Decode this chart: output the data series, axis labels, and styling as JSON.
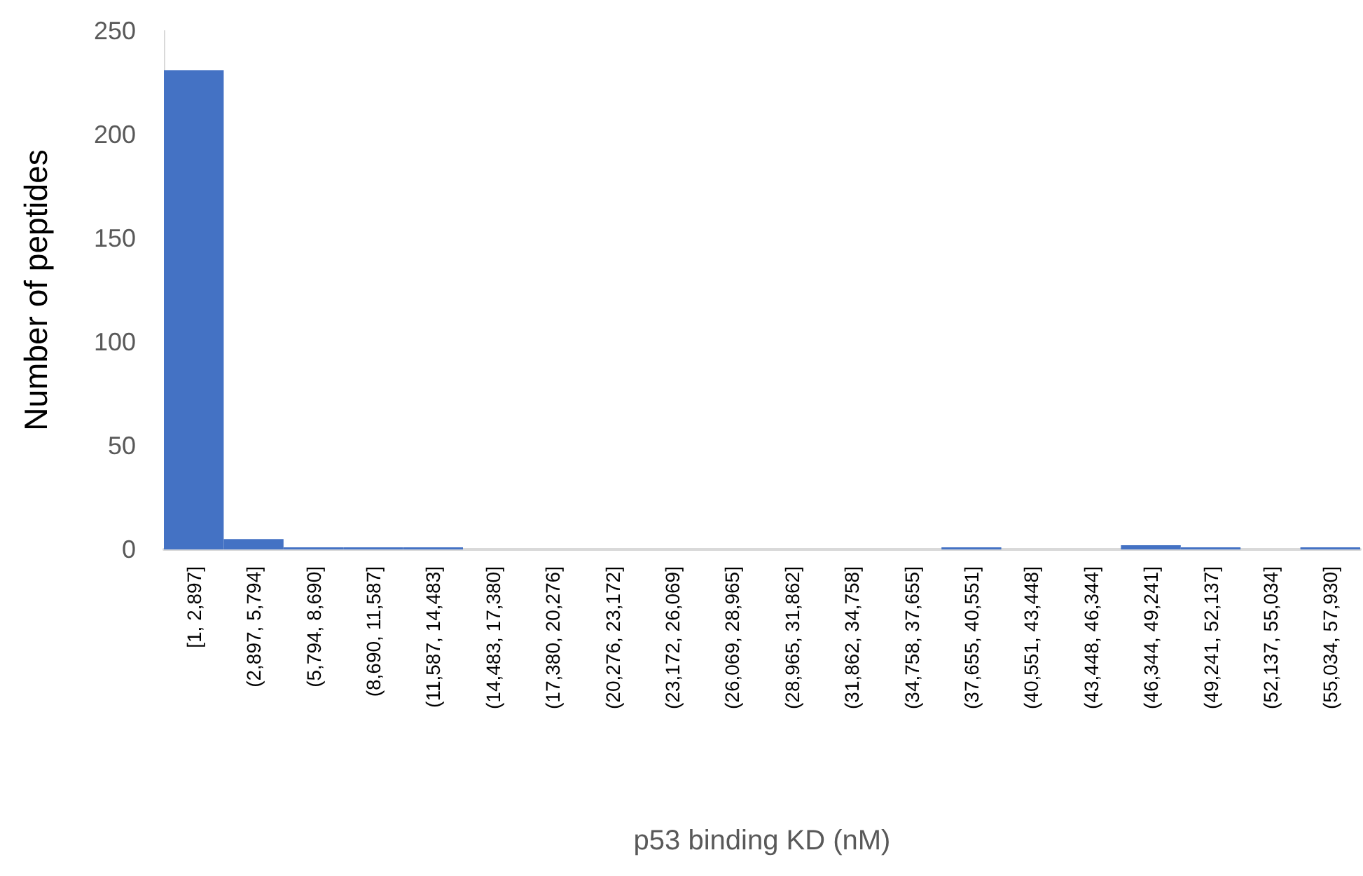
{
  "chart_data": {
    "type": "bar",
    "xlabel": "p53 binding KD (nM)",
    "ylabel": "Number of peptides",
    "categories": [
      "[1, 2,897]",
      "(2,897, 5,794]",
      "(5,794, 8,690]",
      "(8,690, 11,587]",
      "(11,587, 14,483]",
      "(14,483, 17,380]",
      "(17,380, 20,276]",
      "(20,276, 23,172]",
      "(23,172, 26,069]",
      "(26,069, 28,965]",
      "(28,965, 31,862]",
      "(31,862, 34,758]",
      "(34,758, 37,655]",
      "(37,655, 40,551]",
      "(40,551, 43,448]",
      "(43,448, 46,344]",
      "(46,344, 49,241]",
      "(49,241, 52,137]",
      "(52,137, 55,034]",
      "(55,034, 57,930]"
    ],
    "values": [
      231,
      5,
      1,
      1,
      1,
      0,
      0,
      0,
      0,
      0,
      0,
      0,
      0,
      1,
      0,
      0,
      2,
      1,
      0,
      1
    ],
    "color": "#4472c4",
    "ylim": [
      0,
      250
    ],
    "yticks": [
      0,
      50,
      100,
      150,
      200,
      250
    ]
  }
}
